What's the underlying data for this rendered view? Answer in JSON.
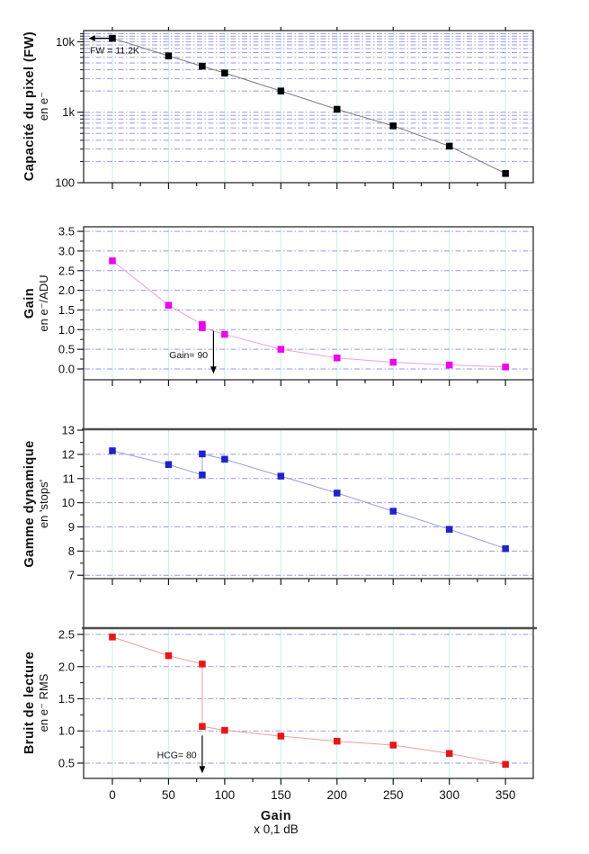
{
  "figure": {
    "x_axis": {
      "title": "Gain",
      "subtitle": "x 0,1 dB",
      "range": [
        -25.6,
        374.7
      ],
      "major_ticks": [
        {
          "v": 0,
          "label": "0"
        },
        {
          "v": 50,
          "label": "50"
        },
        {
          "v": 100,
          "label": "100"
        },
        {
          "v": 150,
          "label": "150"
        },
        {
          "v": 200,
          "label": "200"
        },
        {
          "v": 250,
          "label": "250"
        },
        {
          "v": 300,
          "label": "300"
        },
        {
          "v": 350,
          "label": "350"
        }
      ],
      "minor_ticks": [
        25,
        75,
        125,
        175,
        225,
        275,
        325
      ]
    },
    "colors": {
      "background": "#ffffff",
      "frame": "#1a1a1a",
      "thick_border": "#4d4d4d",
      "h_grid": "#9a9ae0",
      "v_grid": "#c6efee"
    }
  },
  "chart_data": [
    {
      "id": "pixel-capacity",
      "type": "line",
      "ylabel": "Capacité du pixel (FW)",
      "ylabel_sub": "en e⁻",
      "y_scale": "log",
      "y_range": [
        100,
        14400
      ],
      "y_major_ticks": [
        {
          "v": 100,
          "label": "100"
        },
        {
          "v": 1000,
          "label": "1k"
        },
        {
          "v": 10000,
          "label": "10k"
        }
      ],
      "y_minor_ticks": [
        200,
        300,
        400,
        500,
        600,
        700,
        800,
        900,
        2000,
        3000,
        4000,
        5000,
        6000,
        7000,
        8000,
        9000,
        11000,
        12000,
        13000
      ],
      "grid_values": [
        200,
        300,
        400,
        500,
        600,
        700,
        800,
        900,
        1000,
        2000,
        3000,
        4000,
        5000,
        6000,
        7000,
        8000,
        9000,
        10000,
        11000,
        12000,
        13000
      ],
      "points": [
        [
          0,
          11200
        ],
        [
          50,
          6300
        ],
        [
          80,
          4500
        ],
        [
          100,
          3600
        ],
        [
          150,
          2000
        ],
        [
          200,
          1100
        ],
        [
          250,
          640
        ],
        [
          300,
          330
        ],
        [
          350,
          135
        ]
      ],
      "marker_color": "#000000",
      "line_color": "#7d7d7d",
      "annotation": {
        "text": "FW = 11.2K",
        "type": "arrow-left",
        "v": 11200,
        "g_from": -2,
        "g_to": -21,
        "text_g": -20,
        "text_v": 6800,
        "anchor": "start"
      }
    },
    {
      "id": "gain",
      "type": "line",
      "ylabel": "Gain",
      "ylabel_sub": "en e⁻/ADU",
      "y_scale": "linear",
      "y_range": [
        -0.275,
        3.616
      ],
      "y_major_ticks": [
        {
          "v": 0.0,
          "label": "0.0"
        },
        {
          "v": 0.5,
          "label": "0.5"
        },
        {
          "v": 1.0,
          "label": "1.0"
        },
        {
          "v": 1.5,
          "label": "1.5"
        },
        {
          "v": 2.0,
          "label": "2.0"
        },
        {
          "v": 2.5,
          "label": "2.5"
        },
        {
          "v": 3.0,
          "label": "3.0"
        },
        {
          "v": 3.5,
          "label": "3.5"
        }
      ],
      "y_minor_ticks": [
        0.25,
        0.75,
        1.25,
        1.75,
        2.25,
        2.75,
        3.25
      ],
      "grid_values": [
        0.0,
        0.5,
        1.0,
        1.5,
        2.0,
        2.5,
        3.0,
        3.5
      ],
      "points": [
        [
          0,
          2.75
        ],
        [
          50,
          1.62
        ],
        [
          80,
          1.13
        ],
        [
          80,
          1.05
        ],
        [
          100,
          0.88
        ],
        [
          150,
          0.5
        ],
        [
          200,
          0.28
        ],
        [
          250,
          0.17
        ],
        [
          300,
          0.1
        ],
        [
          350,
          0.05
        ]
      ],
      "marker_color": "#ee00ee",
      "line_color": "#f2a0dd",
      "annotation": {
        "text": "Gain= 90",
        "type": "arrow-down",
        "g": 90,
        "v_from": 0.97,
        "v_to": -0.12,
        "text_g": 85,
        "text_v": 0.28,
        "anchor": "end"
      }
    },
    {
      "id": "dynamic-range",
      "type": "line",
      "ylabel": "Gamme dynamique",
      "ylabel_sub": "en 'stops'",
      "y_scale": "linear",
      "y_range": [
        6.86,
        13.04
      ],
      "y_major_ticks": [
        {
          "v": 7,
          "label": "7"
        },
        {
          "v": 8,
          "label": "8"
        },
        {
          "v": 9,
          "label": "9"
        },
        {
          "v": 10,
          "label": "10"
        },
        {
          "v": 11,
          "label": "11"
        },
        {
          "v": 12,
          "label": "12"
        },
        {
          "v": 13,
          "label": "13"
        }
      ],
      "y_minor_ticks": [
        7.5,
        8.5,
        9.5,
        10.5,
        11.5,
        12.5
      ],
      "grid_values": [
        7,
        8,
        9,
        10,
        11,
        12
      ],
      "points": [
        [
          0,
          12.15
        ],
        [
          50,
          11.58
        ],
        [
          80,
          11.15
        ],
        [
          80,
          12.02
        ],
        [
          100,
          11.8
        ],
        [
          150,
          11.1
        ],
        [
          200,
          10.4
        ],
        [
          250,
          9.65
        ],
        [
          300,
          8.9
        ],
        [
          350,
          8.1
        ]
      ],
      "marker_color": "#2121cd",
      "line_color": "#9a9ade",
      "annotation": null
    },
    {
      "id": "read-noise",
      "type": "line",
      "ylabel": "Bruit de lecture",
      "ylabel_sub": "en e⁻ RMS",
      "y_scale": "linear",
      "y_range": [
        0.262,
        2.598
      ],
      "y_major_ticks": [
        {
          "v": 0.5,
          "label": "0.5"
        },
        {
          "v": 1.0,
          "label": "1.0"
        },
        {
          "v": 1.5,
          "label": "1.5"
        },
        {
          "v": 2.0,
          "label": "2.0"
        },
        {
          "v": 2.5,
          "label": "2.5"
        }
      ],
      "y_minor_ticks": [
        0.75,
        1.25,
        1.75,
        2.25
      ],
      "grid_values": [
        0.5,
        1.0,
        1.5,
        2.0,
        2.5
      ],
      "points": [
        [
          0,
          2.46
        ],
        [
          50,
          2.17
        ],
        [
          80,
          2.04
        ],
        [
          80,
          1.07
        ],
        [
          100,
          1.01
        ],
        [
          150,
          0.92
        ],
        [
          200,
          0.84
        ],
        [
          250,
          0.78
        ],
        [
          300,
          0.65
        ],
        [
          350,
          0.48
        ]
      ],
      "marker_color": "#e81515",
      "line_color": "#f59c9c",
      "annotation": {
        "text": "HCG= 80",
        "type": "arrow-down",
        "g": 80,
        "v_from": 0.93,
        "v_to": 0.34,
        "text_g": 75,
        "text_v": 0.58,
        "anchor": "end"
      }
    }
  ]
}
